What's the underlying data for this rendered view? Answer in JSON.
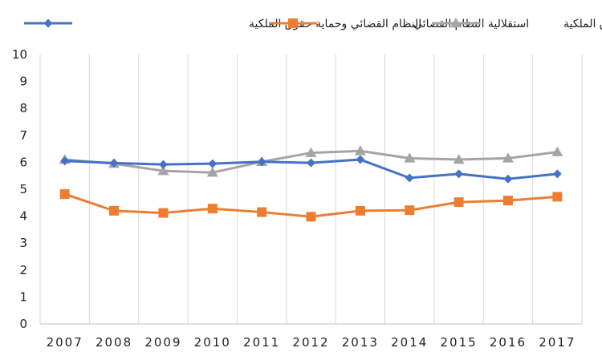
{
  "chart_data": {
    "type": "line",
    "title": "",
    "xlabel": "",
    "ylabel": "",
    "categories": [
      "2007",
      "2008",
      "2009",
      "2010",
      "2011",
      "2012",
      "2013",
      "2014",
      "2015",
      "2016",
      "2017"
    ],
    "ylim": [
      0,
      10
    ],
    "yticks": [
      0,
      1,
      2,
      3,
      4,
      5,
      6,
      7,
      8,
      9,
      10
    ],
    "grid": "vertical",
    "legend_position": "top",
    "series": [
      {
        "name": "النظام القضائي وحماية حقوق الملكية",
        "color": "#4472C4",
        "marker": "diamond",
        "values": [
          6.05,
          5.97,
          5.92,
          5.95,
          6.02,
          5.98,
          6.1,
          5.42,
          5.57,
          5.38,
          5.57
        ]
      },
      {
        "name": "استقلالية النظام القضائي",
        "color": "#ED7D31",
        "marker": "square",
        "values": [
          4.82,
          4.2,
          4.12,
          4.28,
          4.15,
          3.98,
          4.2,
          4.22,
          4.52,
          4.58,
          4.72
        ]
      },
      {
        "name": "حماية حقوق الملكية",
        "color": "#A5A5A5",
        "marker": "triangle",
        "values": [
          6.1,
          5.95,
          5.68,
          5.62,
          6.02,
          6.35,
          6.42,
          6.15,
          6.1,
          6.15,
          6.38
        ]
      }
    ]
  }
}
